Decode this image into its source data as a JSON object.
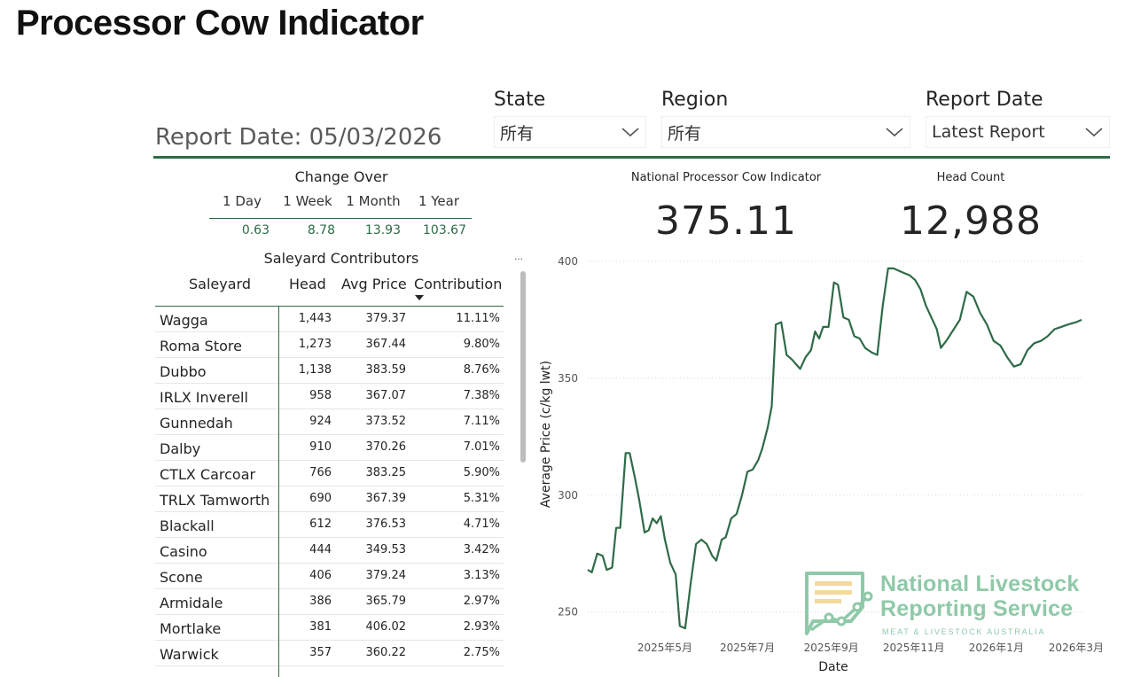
{
  "page": {
    "title": "Processor Cow Indicator",
    "report_date_banner": "Report Date: 05/03/2026"
  },
  "slicers": {
    "state": {
      "label": "State",
      "value": "所有"
    },
    "region": {
      "label": "Region",
      "value": "所有"
    },
    "report_date": {
      "label": "Report Date",
      "value": "Latest Report"
    }
  },
  "change_over": {
    "title": "Change Over",
    "columns": [
      "1 Day",
      "1 Week",
      "1 Month",
      "1 Year"
    ],
    "values": [
      "0.63",
      "8.78",
      "13.93",
      "103.67"
    ]
  },
  "kpis": {
    "indicator": {
      "title": "National Processor Cow Indicator",
      "value": "375.11"
    },
    "head_count": {
      "title": "Head Count",
      "value": "12,988"
    }
  },
  "table": {
    "title": "Saleyard Contributors",
    "more": "...",
    "headers": {
      "saleyard": "Saleyard",
      "head": "Head",
      "avg_price": "Avg Price",
      "contribution": "Contribution"
    },
    "rows": [
      {
        "saleyard": "Wagga",
        "head": "1,443",
        "avg_price": "379.37",
        "contribution": "11.11%"
      },
      {
        "saleyard": "Roma Store",
        "head": "1,273",
        "avg_price": "367.44",
        "contribution": "9.80%"
      },
      {
        "saleyard": "Dubbo",
        "head": "1,138",
        "avg_price": "383.59",
        "contribution": "8.76%"
      },
      {
        "saleyard": "IRLX Inverell",
        "head": "958",
        "avg_price": "367.07",
        "contribution": "7.38%"
      },
      {
        "saleyard": "Gunnedah",
        "head": "924",
        "avg_price": "373.52",
        "contribution": "7.11%"
      },
      {
        "saleyard": "Dalby",
        "head": "910",
        "avg_price": "370.26",
        "contribution": "7.01%"
      },
      {
        "saleyard": "CTLX Carcoar",
        "head": "766",
        "avg_price": "383.25",
        "contribution": "5.90%"
      },
      {
        "saleyard": "TRLX Tamworth",
        "head": "690",
        "avg_price": "367.39",
        "contribution": "5.31%"
      },
      {
        "saleyard": "Blackall",
        "head": "612",
        "avg_price": "376.53",
        "contribution": "4.71%"
      },
      {
        "saleyard": "Casino",
        "head": "444",
        "avg_price": "349.53",
        "contribution": "3.42%"
      },
      {
        "saleyard": "Scone",
        "head": "406",
        "avg_price": "379.24",
        "contribution": "3.13%"
      },
      {
        "saleyard": "Armidale",
        "head": "386",
        "avg_price": "365.79",
        "contribution": "2.97%"
      },
      {
        "saleyard": "Mortlake",
        "head": "381",
        "avg_price": "406.02",
        "contribution": "2.93%"
      },
      {
        "saleyard": "Warwick",
        "head": "357",
        "avg_price": "360.22",
        "contribution": "2.75%"
      }
    ]
  },
  "colors": {
    "accent": "#2e6b47",
    "logo": "#8fc9a8",
    "logo_bars": "#f3d99a"
  },
  "logo": {
    "line1": "National Livestock",
    "line2": "Reporting Service",
    "sub": "MEAT & LIVESTOCK AUSTRALIA"
  },
  "chart_data": {
    "type": "line",
    "xlabel": "Date",
    "ylabel": "Average Price (c/kg lwt)",
    "x_ticks": [
      {
        "label": "2025年5月",
        "date": "2025-05-01"
      },
      {
        "label": "2025年7月",
        "date": "2025-07-01"
      },
      {
        "label": "2025年9月",
        "date": "2025-09-01"
      },
      {
        "label": "2025年11月",
        "date": "2025-11-01"
      },
      {
        "label": "2026年1月",
        "date": "2026-01-01"
      },
      {
        "label": "2026年3月",
        "date": "2026-03-01"
      }
    ],
    "y_ticks": [
      250,
      300,
      350,
      400
    ],
    "ylim": [
      240,
      400
    ],
    "xlim": [
      "2025-03-05",
      "2026-03-05"
    ],
    "grid": "horizontal-dotted",
    "series": [
      {
        "values": [
          [
            "2025-03-05",
            268
          ],
          [
            "2025-03-08",
            267
          ],
          [
            "2025-03-12",
            275
          ],
          [
            "2025-03-16",
            274
          ],
          [
            "2025-03-19",
            268
          ],
          [
            "2025-03-23",
            269
          ],
          [
            "2025-03-26",
            286
          ],
          [
            "2025-03-29",
            286
          ],
          [
            "2025-04-02",
            318
          ],
          [
            "2025-04-05",
            318
          ],
          [
            "2025-04-09",
            307
          ],
          [
            "2025-04-12",
            298
          ],
          [
            "2025-04-16",
            284
          ],
          [
            "2025-04-19",
            285
          ],
          [
            "2025-04-22",
            290
          ],
          [
            "2025-04-25",
            288
          ],
          [
            "2025-04-28",
            291
          ],
          [
            "2025-05-01",
            281
          ],
          [
            "2025-05-05",
            271
          ],
          [
            "2025-05-09",
            266
          ],
          [
            "2025-05-12",
            244
          ],
          [
            "2025-05-16",
            243
          ],
          [
            "2025-05-20",
            262
          ],
          [
            "2025-05-24",
            279
          ],
          [
            "2025-05-28",
            281
          ],
          [
            "2025-06-01",
            279
          ],
          [
            "2025-06-05",
            274
          ],
          [
            "2025-06-08",
            272
          ],
          [
            "2025-06-12",
            281
          ],
          [
            "2025-06-15",
            282
          ],
          [
            "2025-06-19",
            290
          ],
          [
            "2025-06-23",
            292
          ],
          [
            "2025-06-27",
            300
          ],
          [
            "2025-07-01",
            310
          ],
          [
            "2025-07-05",
            311
          ],
          [
            "2025-07-09",
            315
          ],
          [
            "2025-07-12",
            320
          ],
          [
            "2025-07-16",
            329
          ],
          [
            "2025-07-19",
            338
          ],
          [
            "2025-07-22",
            373
          ],
          [
            "2025-07-26",
            374
          ],
          [
            "2025-07-30",
            360
          ],
          [
            "2025-08-03",
            358
          ],
          [
            "2025-08-06",
            356
          ],
          [
            "2025-08-09",
            354
          ],
          [
            "2025-08-13",
            359
          ],
          [
            "2025-08-17",
            362
          ],
          [
            "2025-08-20",
            370
          ],
          [
            "2025-08-23",
            367
          ],
          [
            "2025-08-26",
            372
          ],
          [
            "2025-08-30",
            372
          ],
          [
            "2025-09-03",
            391
          ],
          [
            "2025-09-06",
            390
          ],
          [
            "2025-09-10",
            376
          ],
          [
            "2025-09-14",
            375
          ],
          [
            "2025-09-18",
            368
          ],
          [
            "2025-09-22",
            367
          ],
          [
            "2025-09-26",
            363
          ],
          [
            "2025-10-01",
            361
          ],
          [
            "2025-10-05",
            360
          ],
          [
            "2025-10-09",
            381
          ],
          [
            "2025-10-13",
            397
          ],
          [
            "2025-10-17",
            397
          ],
          [
            "2025-10-21",
            396
          ],
          [
            "2025-10-25",
            395
          ],
          [
            "2025-10-29",
            394
          ],
          [
            "2025-11-02",
            392
          ],
          [
            "2025-11-06",
            388
          ],
          [
            "2025-11-10",
            381
          ],
          [
            "2025-11-14",
            376
          ],
          [
            "2025-11-18",
            371
          ],
          [
            "2025-11-21",
            363
          ],
          [
            "2025-11-25",
            366
          ],
          [
            "2025-12-05",
            375
          ],
          [
            "2025-12-10",
            387
          ],
          [
            "2025-12-15",
            385
          ],
          [
            "2025-12-20",
            378
          ],
          [
            "2025-12-25",
            373
          ],
          [
            "2025-12-30",
            366
          ],
          [
            "2026-01-04",
            364
          ],
          [
            "2026-01-09",
            359
          ],
          [
            "2026-01-14",
            355
          ],
          [
            "2026-01-19",
            356
          ],
          [
            "2026-01-24",
            362
          ],
          [
            "2026-01-29",
            365
          ],
          [
            "2026-02-03",
            366
          ],
          [
            "2026-02-08",
            368
          ],
          [
            "2026-02-13",
            371
          ],
          [
            "2026-02-18",
            372
          ],
          [
            "2026-02-23",
            373
          ],
          [
            "2026-03-01",
            374
          ],
          [
            "2026-03-05",
            375
          ]
        ]
      }
    ]
  }
}
